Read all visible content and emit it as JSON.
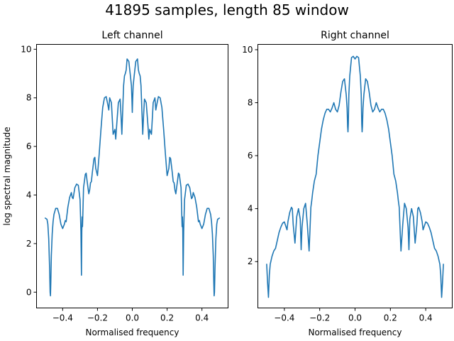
{
  "figure": {
    "suptitle": "41895 samples, length 85 window"
  },
  "colors": {
    "series": "#1f77b4",
    "axes": "#000000",
    "background": "#ffffff"
  },
  "chart_data": [
    {
      "type": "line",
      "title": "Left channel",
      "xlabel": "Normalised frequency",
      "ylabel": "log spectral magnitude",
      "xlim": [
        -0.55,
        0.55
      ],
      "ylim": [
        -0.65,
        10.2
      ],
      "xticks": [
        -0.4,
        -0.2,
        0.0,
        0.2,
        0.4
      ],
      "xtick_labels": [
        "−0.4",
        "−0.2",
        "0.0",
        "0.2",
        "0.4"
      ],
      "yticks": [
        0,
        2,
        4,
        6,
        8,
        10
      ],
      "ytick_labels": [
        "0",
        "2",
        "4",
        "6",
        "8",
        "10"
      ],
      "grid": false,
      "series": [
        {
          "x": [
            -0.5,
            -0.49,
            -0.485,
            -0.48,
            -0.475,
            -0.472,
            -0.47,
            -0.468,
            -0.465,
            -0.46,
            -0.455,
            -0.45,
            -0.44,
            -0.43,
            -0.42,
            -0.41,
            -0.4,
            -0.39,
            -0.385,
            -0.38,
            -0.37,
            -0.36,
            -0.35,
            -0.345,
            -0.34,
            -0.33,
            -0.32,
            -0.31,
            -0.3,
            -0.295,
            -0.292,
            -0.29,
            -0.288,
            -0.286,
            -0.284,
            -0.28,
            -0.27,
            -0.265,
            -0.26,
            -0.25,
            -0.245,
            -0.24,
            -0.235,
            -0.23,
            -0.22,
            -0.215,
            -0.21,
            -0.2,
            -0.19,
            -0.18,
            -0.17,
            -0.16,
            -0.15,
            -0.14,
            -0.135,
            -0.13,
            -0.12,
            -0.11,
            -0.1,
            -0.095,
            -0.09,
            -0.08,
            -0.07,
            -0.065,
            -0.06,
            -0.05,
            -0.045,
            -0.04,
            -0.035,
            -0.03,
            -0.02,
            -0.01,
            -0.005,
            -0.002,
            0.0,
            0.002,
            0.005,
            0.01,
            0.02,
            0.03,
            0.035,
            0.04,
            0.045,
            0.05,
            0.06,
            0.065,
            0.07,
            0.08,
            0.09,
            0.095,
            0.1,
            0.11,
            0.12,
            0.13,
            0.135,
            0.14,
            0.15,
            0.16,
            0.17,
            0.18,
            0.19,
            0.2,
            0.21,
            0.215,
            0.22,
            0.23,
            0.235,
            0.24,
            0.245,
            0.25,
            0.26,
            0.265,
            0.27,
            0.28,
            0.284,
            0.286,
            0.288,
            0.29,
            0.292,
            0.295,
            0.3,
            0.31,
            0.32,
            0.33,
            0.34,
            0.345,
            0.35,
            0.36,
            0.37,
            0.38,
            0.385,
            0.39,
            0.4,
            0.41,
            0.42,
            0.43,
            0.44,
            0.45,
            0.455,
            0.46,
            0.465,
            0.468,
            0.47,
            0.472,
            0.475,
            0.48,
            0.485,
            0.49,
            0.5
          ],
          "y": [
            3.05,
            3.0,
            2.8,
            2.2,
            1.0,
            0.0,
            -0.15,
            0.4,
            1.5,
            2.4,
            2.9,
            3.2,
            3.45,
            3.45,
            3.2,
            2.8,
            2.62,
            2.8,
            2.95,
            2.9,
            3.5,
            3.9,
            4.1,
            3.9,
            3.85,
            4.3,
            4.45,
            4.4,
            3.8,
            2.5,
            0.7,
            2.5,
            3.1,
            2.7,
            3.2,
            4.3,
            4.85,
            4.9,
            4.6,
            4.05,
            4.2,
            4.5,
            4.55,
            4.9,
            5.5,
            5.55,
            5.1,
            4.8,
            5.7,
            6.7,
            7.6,
            8.0,
            8.05,
            7.7,
            7.5,
            8.0,
            7.8,
            6.5,
            6.7,
            6.3,
            6.85,
            7.8,
            7.95,
            7.3,
            6.5,
            8.5,
            8.9,
            9.0,
            9.15,
            9.6,
            9.5,
            8.85,
            8.5,
            7.9,
            7.4,
            7.9,
            8.5,
            8.85,
            9.5,
            9.6,
            9.15,
            9.0,
            8.9,
            8.5,
            6.5,
            7.3,
            7.95,
            7.8,
            6.85,
            6.3,
            6.7,
            6.5,
            7.8,
            8.0,
            7.5,
            7.7,
            8.05,
            8.0,
            7.6,
            6.7,
            5.7,
            4.8,
            5.1,
            5.55,
            5.5,
            4.9,
            4.55,
            4.5,
            4.2,
            4.05,
            4.6,
            4.9,
            4.85,
            4.3,
            3.2,
            2.7,
            3.1,
            2.5,
            0.7,
            2.5,
            3.8,
            4.4,
            4.45,
            4.3,
            3.85,
            3.9,
            4.1,
            3.9,
            3.5,
            2.9,
            2.95,
            2.8,
            2.62,
            2.8,
            3.2,
            3.45,
            3.45,
            3.2,
            2.9,
            2.4,
            1.5,
            0.4,
            -0.15,
            0.0,
            1.0,
            2.2,
            2.8,
            3.0,
            3.05
          ]
        }
      ]
    },
    {
      "type": "line",
      "title": "Right channel",
      "xlabel": "Normalised frequency",
      "ylabel": "",
      "xlim": [
        -0.55,
        0.55
      ],
      "ylim": [
        0.25,
        10.2
      ],
      "xticks": [
        -0.4,
        -0.2,
        0.0,
        0.2,
        0.4
      ],
      "xtick_labels": [
        "−0.4",
        "−0.2",
        "0.0",
        "0.2",
        "0.4"
      ],
      "yticks": [
        2,
        4,
        6,
        8,
        10
      ],
      "ytick_labels": [
        "2",
        "4",
        "6",
        "8",
        "10"
      ],
      "grid": false,
      "series": [
        {
          "x": [
            -0.5,
            -0.495,
            -0.49,
            -0.485,
            -0.48,
            -0.47,
            -0.46,
            -0.45,
            -0.44,
            -0.43,
            -0.42,
            -0.41,
            -0.4,
            -0.39,
            -0.385,
            -0.38,
            -0.37,
            -0.36,
            -0.355,
            -0.35,
            -0.34,
            -0.33,
            -0.32,
            -0.31,
            -0.305,
            -0.3,
            -0.29,
            -0.28,
            -0.27,
            -0.26,
            -0.255,
            -0.25,
            -0.245,
            -0.24,
            -0.23,
            -0.22,
            -0.21,
            -0.2,
            -0.19,
            -0.18,
            -0.17,
            -0.16,
            -0.15,
            -0.14,
            -0.13,
            -0.12,
            -0.11,
            -0.1,
            -0.09,
            -0.08,
            -0.07,
            -0.06,
            -0.05,
            -0.045,
            -0.042,
            -0.04,
            -0.038,
            -0.035,
            -0.03,
            -0.02,
            -0.01,
            0.0,
            0.01,
            0.02,
            0.03,
            0.035,
            0.038,
            0.04,
            0.042,
            0.045,
            0.05,
            0.06,
            0.07,
            0.08,
            0.09,
            0.1,
            0.11,
            0.12,
            0.13,
            0.14,
            0.15,
            0.16,
            0.17,
            0.18,
            0.19,
            0.2,
            0.21,
            0.22,
            0.23,
            0.24,
            0.245,
            0.25,
            0.255,
            0.26,
            0.27,
            0.28,
            0.29,
            0.3,
            0.305,
            0.31,
            0.32,
            0.33,
            0.34,
            0.35,
            0.355,
            0.36,
            0.37,
            0.38,
            0.385,
            0.39,
            0.4,
            0.41,
            0.42,
            0.43,
            0.44,
            0.45,
            0.46,
            0.47,
            0.48,
            0.485,
            0.49,
            0.495,
            0.5
          ],
          "y": [
            1.9,
            1.2,
            0.65,
            1.5,
            1.9,
            2.2,
            2.4,
            2.5,
            2.8,
            3.1,
            3.3,
            3.45,
            3.5,
            3.3,
            3.2,
            3.5,
            3.85,
            4.05,
            4.0,
            3.4,
            2.7,
            3.7,
            4.0,
            3.6,
            2.45,
            3.3,
            4.0,
            4.2,
            3.4,
            2.4,
            3.2,
            4.05,
            4.3,
            4.6,
            5.05,
            5.3,
            6.0,
            6.5,
            7.0,
            7.35,
            7.6,
            7.75,
            7.75,
            7.65,
            7.8,
            8.0,
            7.75,
            7.65,
            7.9,
            8.4,
            8.8,
            8.9,
            8.3,
            7.8,
            7.1,
            6.9,
            7.2,
            8.3,
            9.0,
            9.7,
            9.75,
            9.65,
            9.75,
            9.7,
            9.0,
            8.3,
            7.2,
            6.9,
            7.1,
            7.8,
            8.3,
            8.9,
            8.8,
            8.4,
            7.9,
            7.65,
            7.75,
            8.0,
            7.8,
            7.65,
            7.75,
            7.75,
            7.6,
            7.35,
            7.0,
            6.5,
            6.0,
            5.3,
            5.05,
            4.6,
            4.3,
            4.05,
            3.2,
            2.4,
            3.4,
            4.2,
            4.0,
            3.3,
            2.45,
            3.6,
            4.0,
            3.7,
            2.7,
            3.4,
            4.0,
            4.05,
            3.85,
            3.5,
            3.2,
            3.3,
            3.5,
            3.45,
            3.3,
            3.1,
            2.8,
            2.5,
            2.4,
            2.2,
            1.9,
            1.5,
            0.65,
            1.2,
            1.9
          ]
        }
      ]
    }
  ]
}
